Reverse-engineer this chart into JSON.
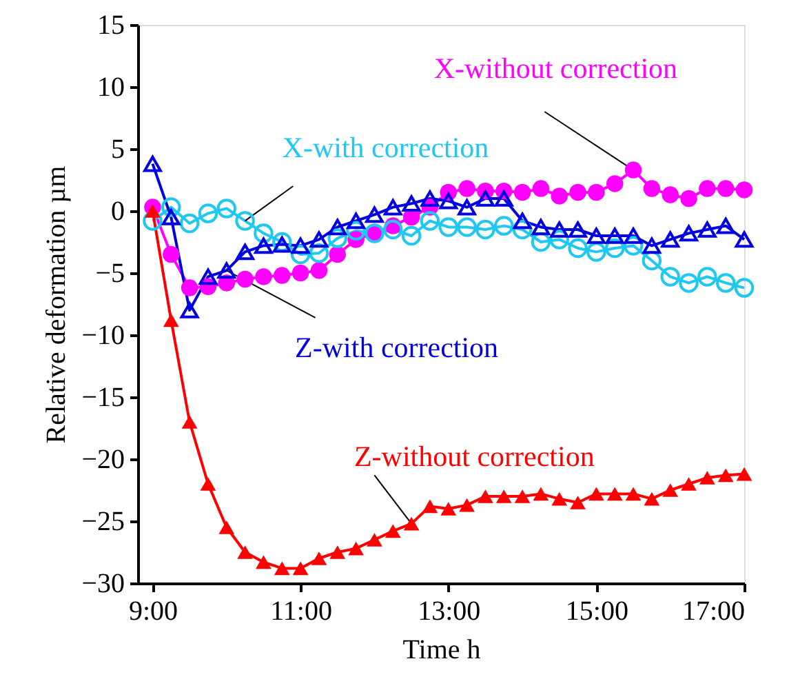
{
  "chart_data": {
    "type": "line",
    "xlabel": "Time h",
    "ylabel": "Relative deformation µm",
    "xlim": [
      8.8,
      17
    ],
    "xticks": [
      {
        "value": 9,
        "label": "9:00"
      },
      {
        "value": 11,
        "label": "11:00"
      },
      {
        "value": 13,
        "label": "13:00"
      },
      {
        "value": 15,
        "label": "15:00"
      },
      {
        "value": 17,
        "label": "17:00"
      }
    ],
    "ylim": [
      -30,
      15
    ],
    "yticks": [
      -30,
      -25,
      -20,
      -15,
      -10,
      -5,
      0,
      5,
      10,
      15
    ],
    "x": [
      9,
      9.25,
      9.5,
      9.75,
      10,
      10.25,
      10.5,
      10.75,
      11,
      11.25,
      11.5,
      11.75,
      12,
      12.25,
      12.5,
      12.75,
      13,
      13.25,
      13.5,
      13.75,
      14,
      14.25,
      14.5,
      14.75,
      15,
      15.25,
      15.5,
      15.75,
      16,
      16.25,
      16.5,
      16.75,
      17
    ],
    "grid": false,
    "line_style": "solid",
    "series": [
      {
        "name": "X-without correction",
        "color": "#ff00ff",
        "marker": "circle",
        "values": [
          0.3,
          -3.5,
          -6.2,
          -6.1,
          -5.8,
          -5.5,
          -5.3,
          -5.2,
          -5.0,
          -4.8,
          -3.5,
          -2.3,
          -1.8,
          -1.2,
          -0.5,
          0.3,
          1.5,
          1.8,
          1.6,
          1.6,
          1.5,
          1.8,
          1.2,
          1.5,
          1.5,
          2.2,
          3.3,
          1.8,
          1.3,
          1.0,
          1.8,
          1.8,
          1.7
        ]
      },
      {
        "name": "X-with correction",
        "color": "#1ec8f0",
        "marker": "circle",
        "values": [
          -0.8,
          0.3,
          -1.0,
          -0.2,
          0.2,
          -0.8,
          -1.8,
          -2.5,
          -3.5,
          -3.4,
          -2.2,
          -1.6,
          -1.8,
          -1.5,
          -2.0,
          -0.8,
          -1.3,
          -1.3,
          -1.5,
          -1.2,
          -1.5,
          -2.5,
          -2.3,
          -3.0,
          -3.3,
          -3.0,
          -2.8,
          -4.0,
          -5.3,
          -5.8,
          -5.3,
          -5.8,
          -6.2
        ]
      },
      {
        "name": "Z-with correction",
        "color": "#0000e0",
        "marker": "triangle",
        "values": [
          3.8,
          -0.5,
          -8.0,
          -5.3,
          -4.8,
          -3.3,
          -2.8,
          -2.7,
          -2.8,
          -2.3,
          -1.3,
          -0.8,
          -0.3,
          0.3,
          0.6,
          1.0,
          0.8,
          0.3,
          1.0,
          1.0,
          -0.8,
          -1.3,
          -1.5,
          -1.5,
          -2.0,
          -2.0,
          -2.0,
          -2.8,
          -2.3,
          -1.8,
          -1.5,
          -1.2,
          -2.3
        ]
      },
      {
        "name": "Z-without correction",
        "color": "#ff0000",
        "marker": "triangle",
        "values": [
          0.0,
          -8.8,
          -17.0,
          -22.0,
          -25.5,
          -27.5,
          -28.3,
          -28.8,
          -28.8,
          -28.0,
          -27.5,
          -27.2,
          -26.5,
          -25.8,
          -25.2,
          -23.8,
          -24.0,
          -23.7,
          -23.0,
          -23.0,
          -23.0,
          -22.8,
          -23.2,
          -23.5,
          -22.8,
          -22.8,
          -22.8,
          -23.2,
          -22.5,
          -22.0,
          -21.5,
          -21.3,
          -21.2
        ]
      }
    ]
  }
}
